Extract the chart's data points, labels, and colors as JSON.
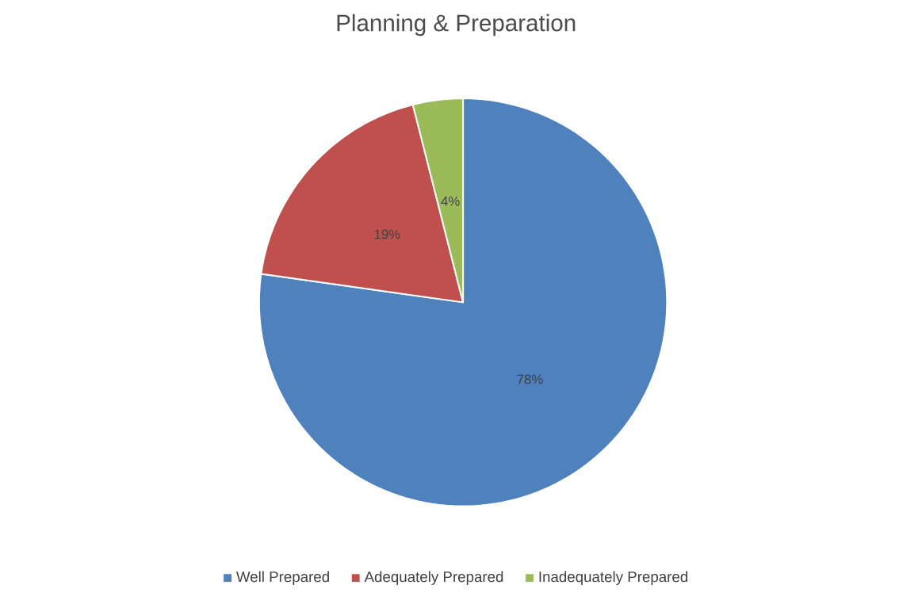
{
  "chart_data": {
    "type": "pie",
    "title": "Planning & Preparation",
    "categories": [
      "Well Prepared",
      "Adequately Prepared",
      "Inadequately Prepared"
    ],
    "values": [
      78,
      19,
      4
    ],
    "value_labels": [
      "78%",
      "19%",
      "4%"
    ],
    "colors": [
      "#4f81bd",
      "#c0504d",
      "#9bbb59"
    ],
    "legend": "bottom"
  }
}
